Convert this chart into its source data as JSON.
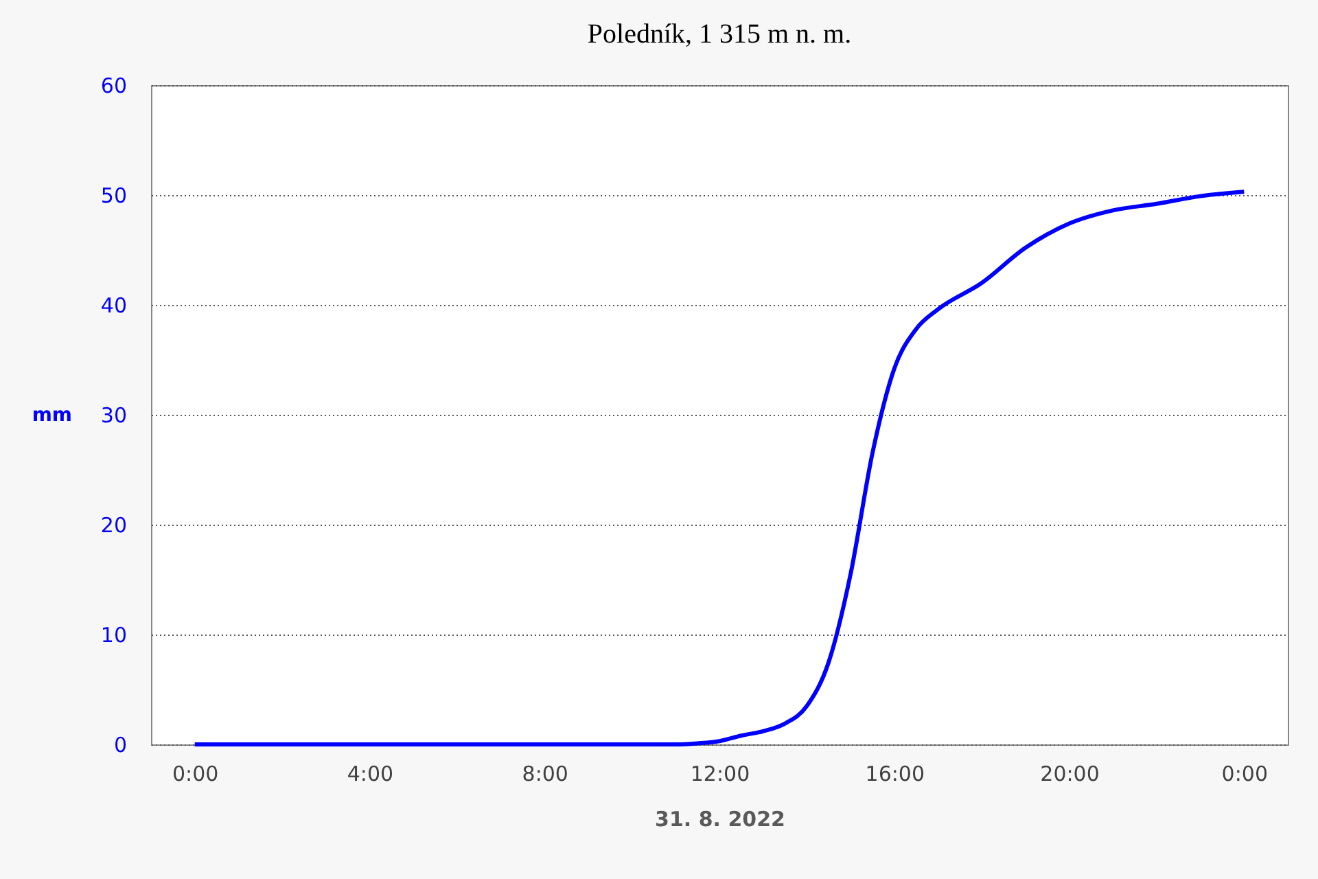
{
  "chart_data": {
    "type": "line",
    "title": "Poledník, 1 315 m n. m.",
    "xlabel": "31. 8. 2022",
    "ylabel": "mm",
    "x": [
      0,
      2,
      4,
      6,
      8,
      9,
      10,
      11,
      11.5,
      12,
      12.5,
      13,
      13.5,
      14,
      14.5,
      15,
      15.5,
      16,
      16.5,
      17,
      18,
      19,
      20,
      21,
      22,
      23,
      24
    ],
    "series": [
      {
        "color": "#0000ff",
        "values": [
          0,
          0,
          0,
          0,
          0,
          0,
          0,
          0,
          0.1,
          0.3,
          0.8,
          1.2,
          1.9,
          3.5,
          7.5,
          15.5,
          26.5,
          34.2,
          37.8,
          39.6,
          42,
          45.2,
          47.4,
          48.6,
          49.2,
          49.9,
          50.3
        ]
      }
    ],
    "xlim": [
      -1,
      25
    ],
    "xticks": [
      {
        "value": 0,
        "label": "0:00"
      },
      {
        "value": 4,
        "label": "4:00"
      },
      {
        "value": 8,
        "label": "8:00"
      },
      {
        "value": 12,
        "label": "12:00"
      },
      {
        "value": 16,
        "label": "16:00"
      },
      {
        "value": 20,
        "label": "20:00"
      },
      {
        "value": 24,
        "label": "0:00"
      }
    ],
    "ylim": [
      0,
      60
    ],
    "yticks": [
      0,
      10,
      20,
      30,
      40,
      50,
      60
    ],
    "grid": "y",
    "line_style": "solid",
    "marker": "none"
  }
}
